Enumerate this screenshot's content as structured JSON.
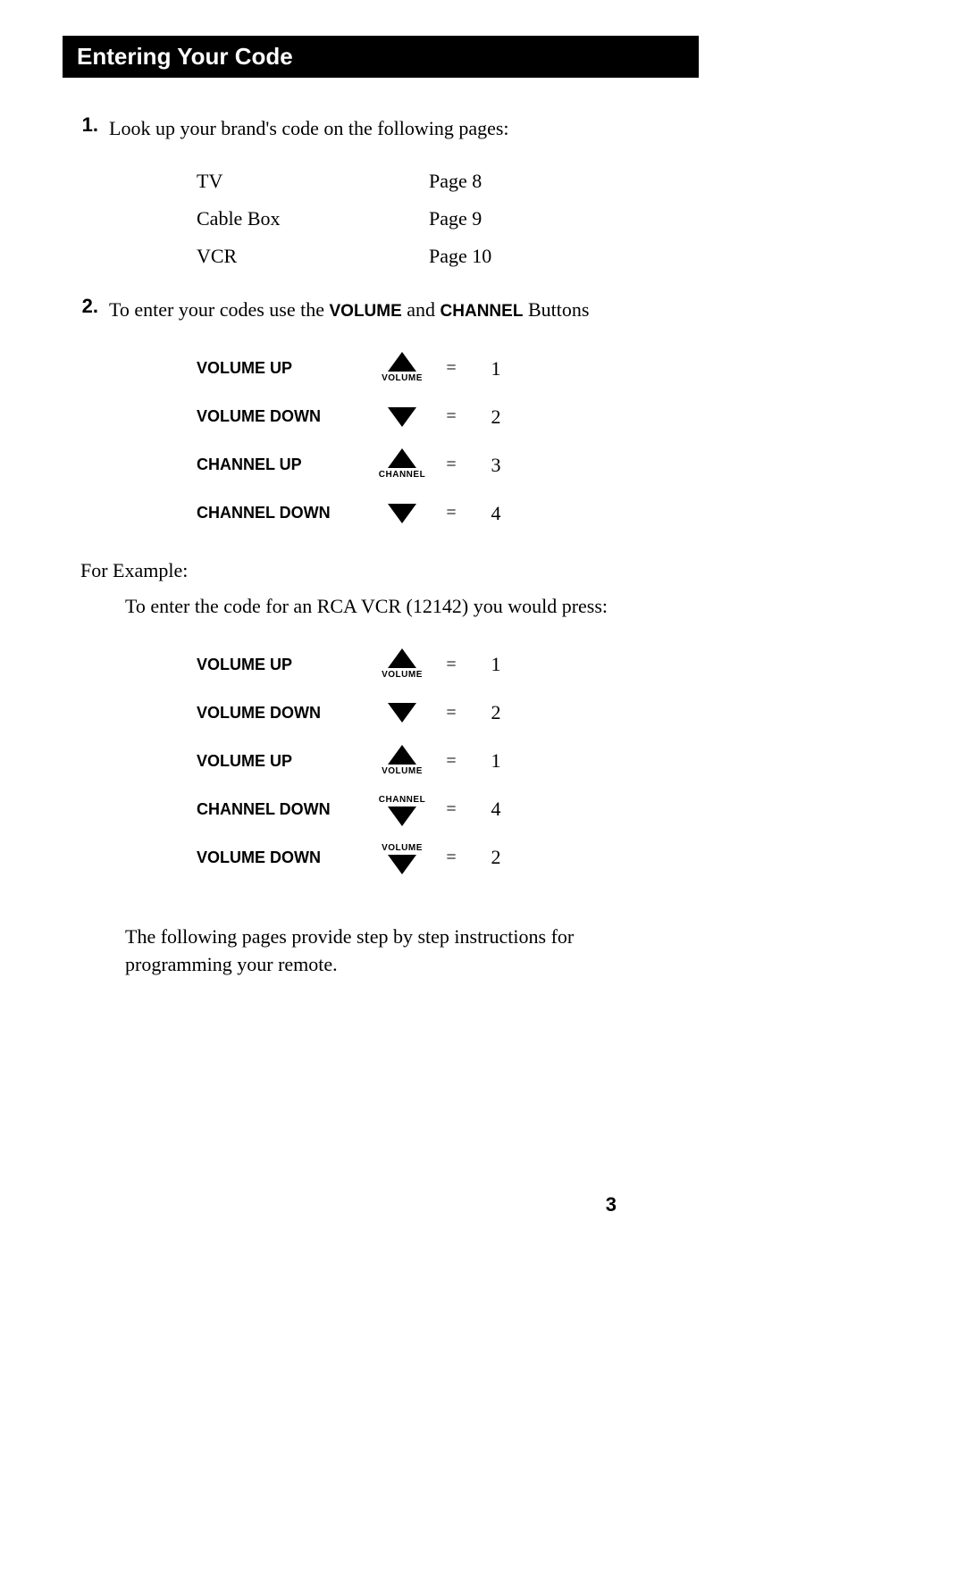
{
  "header": {
    "title": "Entering Your Code"
  },
  "step1": {
    "num": "1.",
    "text": "Look up your brand's code on the following pages:",
    "brands": [
      {
        "name": "TV",
        "page": "Page 8"
      },
      {
        "name": "Cable Box",
        "page": "Page 9"
      },
      {
        "name": "VCR",
        "page": "Page 10"
      }
    ]
  },
  "step2": {
    "num": "2.",
    "text_before": "To enter your codes use the ",
    "bold1": "VOLUME",
    "mid": " and ",
    "bold2": "CHANNEL",
    "text_after": " Buttons",
    "buttons": [
      {
        "label": "VOLUME UP",
        "icon_dir": "up",
        "icon_caption_pos": "below",
        "icon_caption": "VOLUME",
        "eq": "=",
        "val": "1"
      },
      {
        "label": "VOLUME DOWN",
        "icon_dir": "down",
        "icon_caption_pos": "none",
        "icon_caption": "",
        "eq": "=",
        "val": "2"
      },
      {
        "label": "CHANNEL UP",
        "icon_dir": "up",
        "icon_caption_pos": "below",
        "icon_caption": "CHANNEL",
        "eq": "=",
        "val": "3"
      },
      {
        "label": "CHANNEL DOWN",
        "icon_dir": "down",
        "icon_caption_pos": "none",
        "icon_caption": "",
        "eq": "=",
        "val": "4"
      }
    ]
  },
  "example": {
    "heading": "For Example:",
    "line": "To enter the code for an RCA VCR (12142) you would press:",
    "buttons": [
      {
        "label": "VOLUME UP",
        "icon_dir": "up",
        "icon_caption_pos": "below",
        "icon_caption": "VOLUME",
        "eq": "=",
        "val": "1"
      },
      {
        "label": "VOLUME DOWN",
        "icon_dir": "down",
        "icon_caption_pos": "none",
        "icon_caption": "",
        "eq": "=",
        "val": "2"
      },
      {
        "label": "VOLUME UP",
        "icon_dir": "up",
        "icon_caption_pos": "below",
        "icon_caption": "VOLUME",
        "eq": "=",
        "val": "1"
      },
      {
        "label": "CHANNEL DOWN",
        "icon_dir": "down",
        "icon_caption_pos": "above",
        "icon_caption": "CHANNEL",
        "eq": "=",
        "val": "4"
      },
      {
        "label": "VOLUME DOWN",
        "icon_dir": "down",
        "icon_caption_pos": "above",
        "icon_caption": "VOLUME",
        "eq": "=",
        "val": "2"
      }
    ]
  },
  "closing": {
    "text": "The following pages provide step by step instructions for programming your remote."
  },
  "pagenum": "3",
  "colors": {
    "bg": "#ffffff",
    "text": "#000000",
    "header_bg": "#000000",
    "header_text": "#ffffff"
  }
}
